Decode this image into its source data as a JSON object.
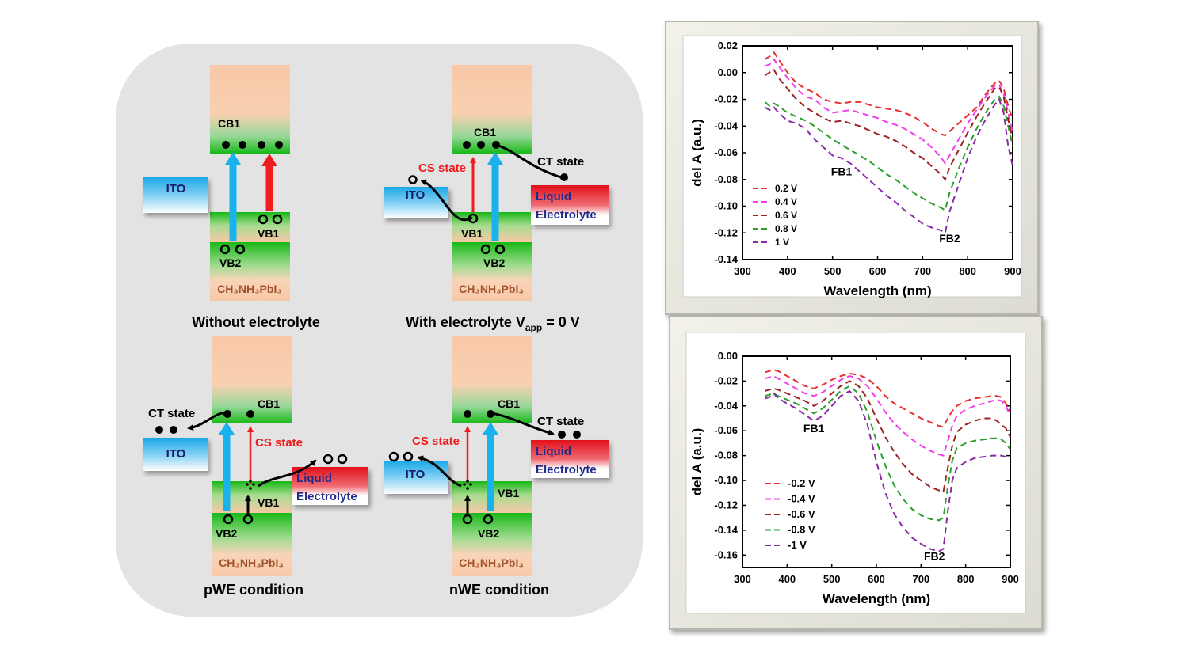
{
  "left_diagram": {
    "panels": [
      {
        "id": "without",
        "caption": "Without electrolyte",
        "cb1": "CB1",
        "vb1": "VB1",
        "vb2": "VB2",
        "material": "CH₃NH₃PbI₃",
        "ito": "ITO"
      },
      {
        "id": "with",
        "caption": "With electrolyte V",
        "caption_sub": "app",
        "caption_tail": " = 0 V",
        "cb1": "CB1",
        "vb1": "VB1",
        "vb2": "VB2",
        "material": "CH₃NH₃PbI₃",
        "ito": "ITO",
        "liquid": "Liquid",
        "electrolyte": "Electrolyte",
        "cs_state": "CS state",
        "ct_state": "CT state"
      },
      {
        "id": "pwe",
        "caption": "pWE condition",
        "cb1": "CB1",
        "vb1": "VB1",
        "vb2": "VB2",
        "material": "CH₃NH₃PbI₃",
        "ito": "ITO",
        "liquid": "Liquid",
        "electrolyte": "Electrolyte",
        "cs_state": "CS state",
        "ct_state": "CT state"
      },
      {
        "id": "nwe",
        "caption": "nWE condition",
        "cb1": "CB1",
        "vb1": "VB1",
        "vb2": "VB2",
        "material": "CH₃NH₃PbI₃",
        "ito": "ITO",
        "liquid": "Liquid",
        "electrolyte": "Electrolyte",
        "cs_state": "CS state",
        "ct_state": "CT state"
      }
    ],
    "colors": {
      "blue_arrow": "#1ab2ec",
      "red_arrow": "#ee1c1c",
      "electrolyte_red": "#e3101b",
      "electrolyte_blue": "#1f2b8c",
      "material_text": "#a0522d"
    }
  },
  "chart_data": [
    {
      "type": "line",
      "xlabel": "Wavelength (nm)",
      "ylabel": "del A (a.u.)",
      "xlim": [
        300,
        900
      ],
      "ylim": [
        -0.14,
        0.02
      ],
      "xticks": [
        300,
        400,
        500,
        600,
        700,
        800,
        900
      ],
      "yticks": [
        "0.02",
        "0.00",
        "-0.02",
        "-0.04",
        "-0.06",
        "-0.08",
        "-0.10",
        "-0.12",
        "-0.14"
      ],
      "annotations": [
        {
          "text": "FB1",
          "x": 520,
          "y": -0.077
        },
        {
          "text": "FB2",
          "x": 760,
          "y": -0.127
        }
      ],
      "legend_position": "bottom-left",
      "x": [
        350,
        360,
        370,
        380,
        400,
        420,
        440,
        460,
        480,
        500,
        520,
        540,
        560,
        580,
        600,
        620,
        640,
        660,
        680,
        700,
        720,
        740,
        750,
        760,
        780,
        800,
        820,
        840,
        860,
        870,
        880,
        890,
        900
      ],
      "series": [
        {
          "name": "0.2 V",
          "color": "#e8302e",
          "values": [
            0.01,
            0.012,
            0.015,
            0.01,
            0.0,
            -0.008,
            -0.012,
            -0.015,
            -0.02,
            -0.022,
            -0.023,
            -0.022,
            -0.022,
            -0.024,
            -0.026,
            -0.027,
            -0.028,
            -0.03,
            -0.033,
            -0.037,
            -0.042,
            -0.046,
            -0.047,
            -0.044,
            -0.038,
            -0.032,
            -0.026,
            -0.016,
            -0.008,
            -0.006,
            -0.012,
            -0.025,
            -0.035
          ]
        },
        {
          "name": "0.4 V",
          "color": "#f23cf0",
          "values": [
            0.005,
            0.006,
            0.01,
            0.005,
            -0.004,
            -0.012,
            -0.018,
            -0.02,
            -0.026,
            -0.03,
            -0.029,
            -0.028,
            -0.03,
            -0.032,
            -0.034,
            -0.037,
            -0.039,
            -0.042,
            -0.046,
            -0.05,
            -0.056,
            -0.063,
            -0.068,
            -0.062,
            -0.05,
            -0.038,
            -0.028,
            -0.018,
            -0.01,
            -0.009,
            -0.016,
            -0.03,
            -0.045
          ]
        },
        {
          "name": "0.6 V",
          "color": "#9a2323",
          "values": [
            -0.002,
            0.0,
            0.002,
            -0.004,
            -0.012,
            -0.02,
            -0.026,
            -0.03,
            -0.034,
            -0.037,
            -0.036,
            -0.038,
            -0.04,
            -0.043,
            -0.046,
            -0.048,
            -0.051,
            -0.055,
            -0.06,
            -0.064,
            -0.07,
            -0.076,
            -0.08,
            -0.071,
            -0.058,
            -0.045,
            -0.033,
            -0.022,
            -0.012,
            -0.011,
            -0.018,
            -0.035,
            -0.05
          ]
        },
        {
          "name": "0.8 V",
          "color": "#2aa02a",
          "values": [
            -0.022,
            -0.025,
            -0.023,
            -0.025,
            -0.03,
            -0.033,
            -0.036,
            -0.04,
            -0.045,
            -0.05,
            -0.054,
            -0.058,
            -0.062,
            -0.066,
            -0.071,
            -0.076,
            -0.08,
            -0.085,
            -0.09,
            -0.094,
            -0.098,
            -0.101,
            -0.103,
            -0.09,
            -0.072,
            -0.056,
            -0.042,
            -0.03,
            -0.02,
            -0.018,
            -0.025,
            -0.04,
            -0.055
          ]
        },
        {
          "name": "1 V",
          "color": "#8a2aa8",
          "values": [
            -0.026,
            -0.028,
            -0.026,
            -0.03,
            -0.036,
            -0.038,
            -0.042,
            -0.05,
            -0.056,
            -0.062,
            -0.064,
            -0.068,
            -0.074,
            -0.08,
            -0.086,
            -0.092,
            -0.097,
            -0.103,
            -0.108,
            -0.113,
            -0.116,
            -0.118,
            -0.12,
            -0.104,
            -0.084,
            -0.064,
            -0.048,
            -0.035,
            -0.024,
            -0.02,
            -0.03,
            -0.055,
            -0.07
          ]
        }
      ]
    },
    {
      "type": "line",
      "xlabel": "Wavelength (nm)",
      "ylabel": "del A (a.u.)",
      "xlim": [
        300,
        900
      ],
      "ylim": [
        -0.17,
        0.0
      ],
      "xticks": [
        300,
        400,
        500,
        600,
        700,
        800,
        900
      ],
      "yticks": [
        "0.00",
        "-0.02",
        "-0.04",
        "-0.06",
        "-0.08",
        "-0.10",
        "-0.12",
        "-0.14",
        "-0.16"
      ],
      "annotations": [
        {
          "text": "FB1",
          "x": 460,
          "y": -0.061
        },
        {
          "text": "FB2",
          "x": 730,
          "y": -0.164
        }
      ],
      "legend_position": "bottom-left",
      "x": [
        350,
        360,
        370,
        380,
        400,
        420,
        440,
        460,
        480,
        500,
        520,
        540,
        560,
        580,
        600,
        620,
        640,
        660,
        680,
        700,
        720,
        740,
        750,
        760,
        770,
        780,
        800,
        820,
        840,
        860,
        870,
        880,
        890,
        900
      ],
      "series": [
        {
          "name": "-0.2 V",
          "color": "#e8302e",
          "values": [
            -0.013,
            -0.012,
            -0.011,
            -0.012,
            -0.016,
            -0.02,
            -0.024,
            -0.026,
            -0.023,
            -0.019,
            -0.016,
            -0.014,
            -0.015,
            -0.018,
            -0.024,
            -0.032,
            -0.038,
            -0.042,
            -0.046,
            -0.05,
            -0.053,
            -0.056,
            -0.057,
            -0.05,
            -0.044,
            -0.04,
            -0.036,
            -0.034,
            -0.033,
            -0.032,
            -0.032,
            -0.033,
            -0.038,
            -0.045
          ]
        },
        {
          "name": "-0.4 V",
          "color": "#f23cf0",
          "values": [
            -0.018,
            -0.017,
            -0.016,
            -0.018,
            -0.022,
            -0.026,
            -0.03,
            -0.032,
            -0.029,
            -0.024,
            -0.019,
            -0.016,
            -0.018,
            -0.024,
            -0.034,
            -0.045,
            -0.054,
            -0.061,
            -0.067,
            -0.072,
            -0.076,
            -0.079,
            -0.08,
            -0.068,
            -0.056,
            -0.048,
            -0.043,
            -0.04,
            -0.038,
            -0.036,
            -0.035,
            -0.036,
            -0.04,
            -0.048
          ]
        },
        {
          "name": "-0.6 V",
          "color": "#9a2323",
          "values": [
            -0.028,
            -0.027,
            -0.026,
            -0.027,
            -0.03,
            -0.033,
            -0.036,
            -0.04,
            -0.036,
            -0.03,
            -0.024,
            -0.02,
            -0.024,
            -0.034,
            -0.05,
            -0.065,
            -0.077,
            -0.087,
            -0.095,
            -0.1,
            -0.105,
            -0.108,
            -0.109,
            -0.09,
            -0.072,
            -0.061,
            -0.055,
            -0.052,
            -0.05,
            -0.05,
            -0.052,
            -0.055,
            -0.058,
            -0.065
          ]
        },
        {
          "name": "-0.8 V",
          "color": "#2aa02a",
          "values": [
            -0.032,
            -0.031,
            -0.03,
            -0.032,
            -0.035,
            -0.038,
            -0.042,
            -0.046,
            -0.042,
            -0.035,
            -0.028,
            -0.024,
            -0.03,
            -0.045,
            -0.068,
            -0.088,
            -0.104,
            -0.115,
            -0.123,
            -0.128,
            -0.131,
            -0.132,
            -0.13,
            -0.105,
            -0.084,
            -0.074,
            -0.07,
            -0.068,
            -0.067,
            -0.066,
            -0.066,
            -0.067,
            -0.07,
            -0.075
          ]
        },
        {
          "name": "-1 V",
          "color": "#8a2aa8",
          "values": [
            -0.034,
            -0.033,
            -0.03,
            -0.034,
            -0.038,
            -0.042,
            -0.047,
            -0.052,
            -0.048,
            -0.04,
            -0.032,
            -0.028,
            -0.036,
            -0.055,
            -0.085,
            -0.11,
            -0.127,
            -0.138,
            -0.146,
            -0.151,
            -0.155,
            -0.157,
            -0.155,
            -0.125,
            -0.1,
            -0.09,
            -0.085,
            -0.082,
            -0.081,
            -0.08,
            -0.08,
            -0.08,
            -0.081,
            -0.082
          ]
        }
      ]
    }
  ]
}
